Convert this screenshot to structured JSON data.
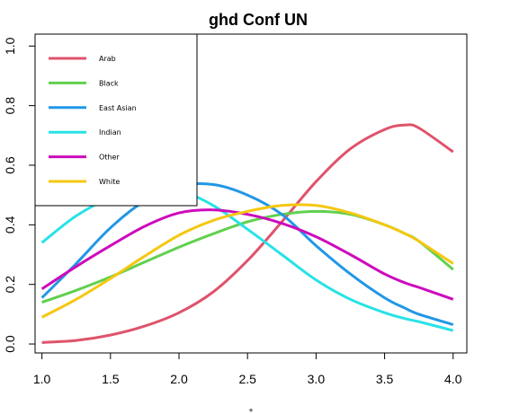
{
  "chart_data": {
    "type": "line",
    "title": "ghd Conf UN",
    "xlabel": "+",
    "ylabel": "",
    "xlim": [
      0.95,
      4.1
    ],
    "ylim": [
      -0.03,
      1.04
    ],
    "xticks": [
      "1.0",
      "1.5",
      "2.0",
      "2.5",
      "3.0",
      "3.5",
      "4.0"
    ],
    "yticks": [
      "0.0",
      "0.2",
      "0.4",
      "0.6",
      "0.8",
      "1.0"
    ],
    "legend": "top-left",
    "grid": false,
    "x": [
      1.0,
      1.25,
      1.5,
      1.75,
      2.0,
      2.25,
      2.5,
      2.75,
      3.0,
      3.25,
      3.5,
      3.65,
      3.75,
      4.0
    ],
    "series": [
      {
        "name": "Arab",
        "color": "#df536b",
        "values": [
          0.005,
          0.012,
          0.03,
          0.06,
          0.105,
          0.175,
          0.28,
          0.41,
          0.545,
          0.655,
          0.72,
          0.735,
          0.725,
          0.645
        ]
      },
      {
        "name": "Black",
        "color": "#61d04f",
        "values": [
          0.14,
          0.18,
          0.225,
          0.275,
          0.325,
          0.37,
          0.41,
          0.435,
          0.445,
          0.435,
          0.4,
          0.37,
          0.345,
          0.25
        ]
      },
      {
        "name": "East Asian",
        "color": "#2297e6",
        "values": [
          0.155,
          0.27,
          0.39,
          0.48,
          0.53,
          0.535,
          0.5,
          0.435,
          0.33,
          0.235,
          0.155,
          0.12,
          0.1,
          0.065
        ]
      },
      {
        "name": "Indian",
        "color": "#28e2e5",
        "values": [
          0.34,
          0.43,
          0.49,
          0.52,
          0.515,
          0.465,
          0.385,
          0.3,
          0.215,
          0.15,
          0.105,
          0.085,
          0.075,
          0.045
        ]
      },
      {
        "name": "Other",
        "color": "#cd0bbc",
        "values": [
          0.185,
          0.26,
          0.33,
          0.395,
          0.44,
          0.45,
          0.435,
          0.405,
          0.36,
          0.3,
          0.235,
          0.205,
          0.19,
          0.15
        ]
      },
      {
        "name": "White",
        "color": "#f5c710",
        "values": [
          0.09,
          0.15,
          0.22,
          0.295,
          0.365,
          0.415,
          0.445,
          0.465,
          0.465,
          0.44,
          0.4,
          0.37,
          0.345,
          0.27
        ]
      }
    ]
  }
}
